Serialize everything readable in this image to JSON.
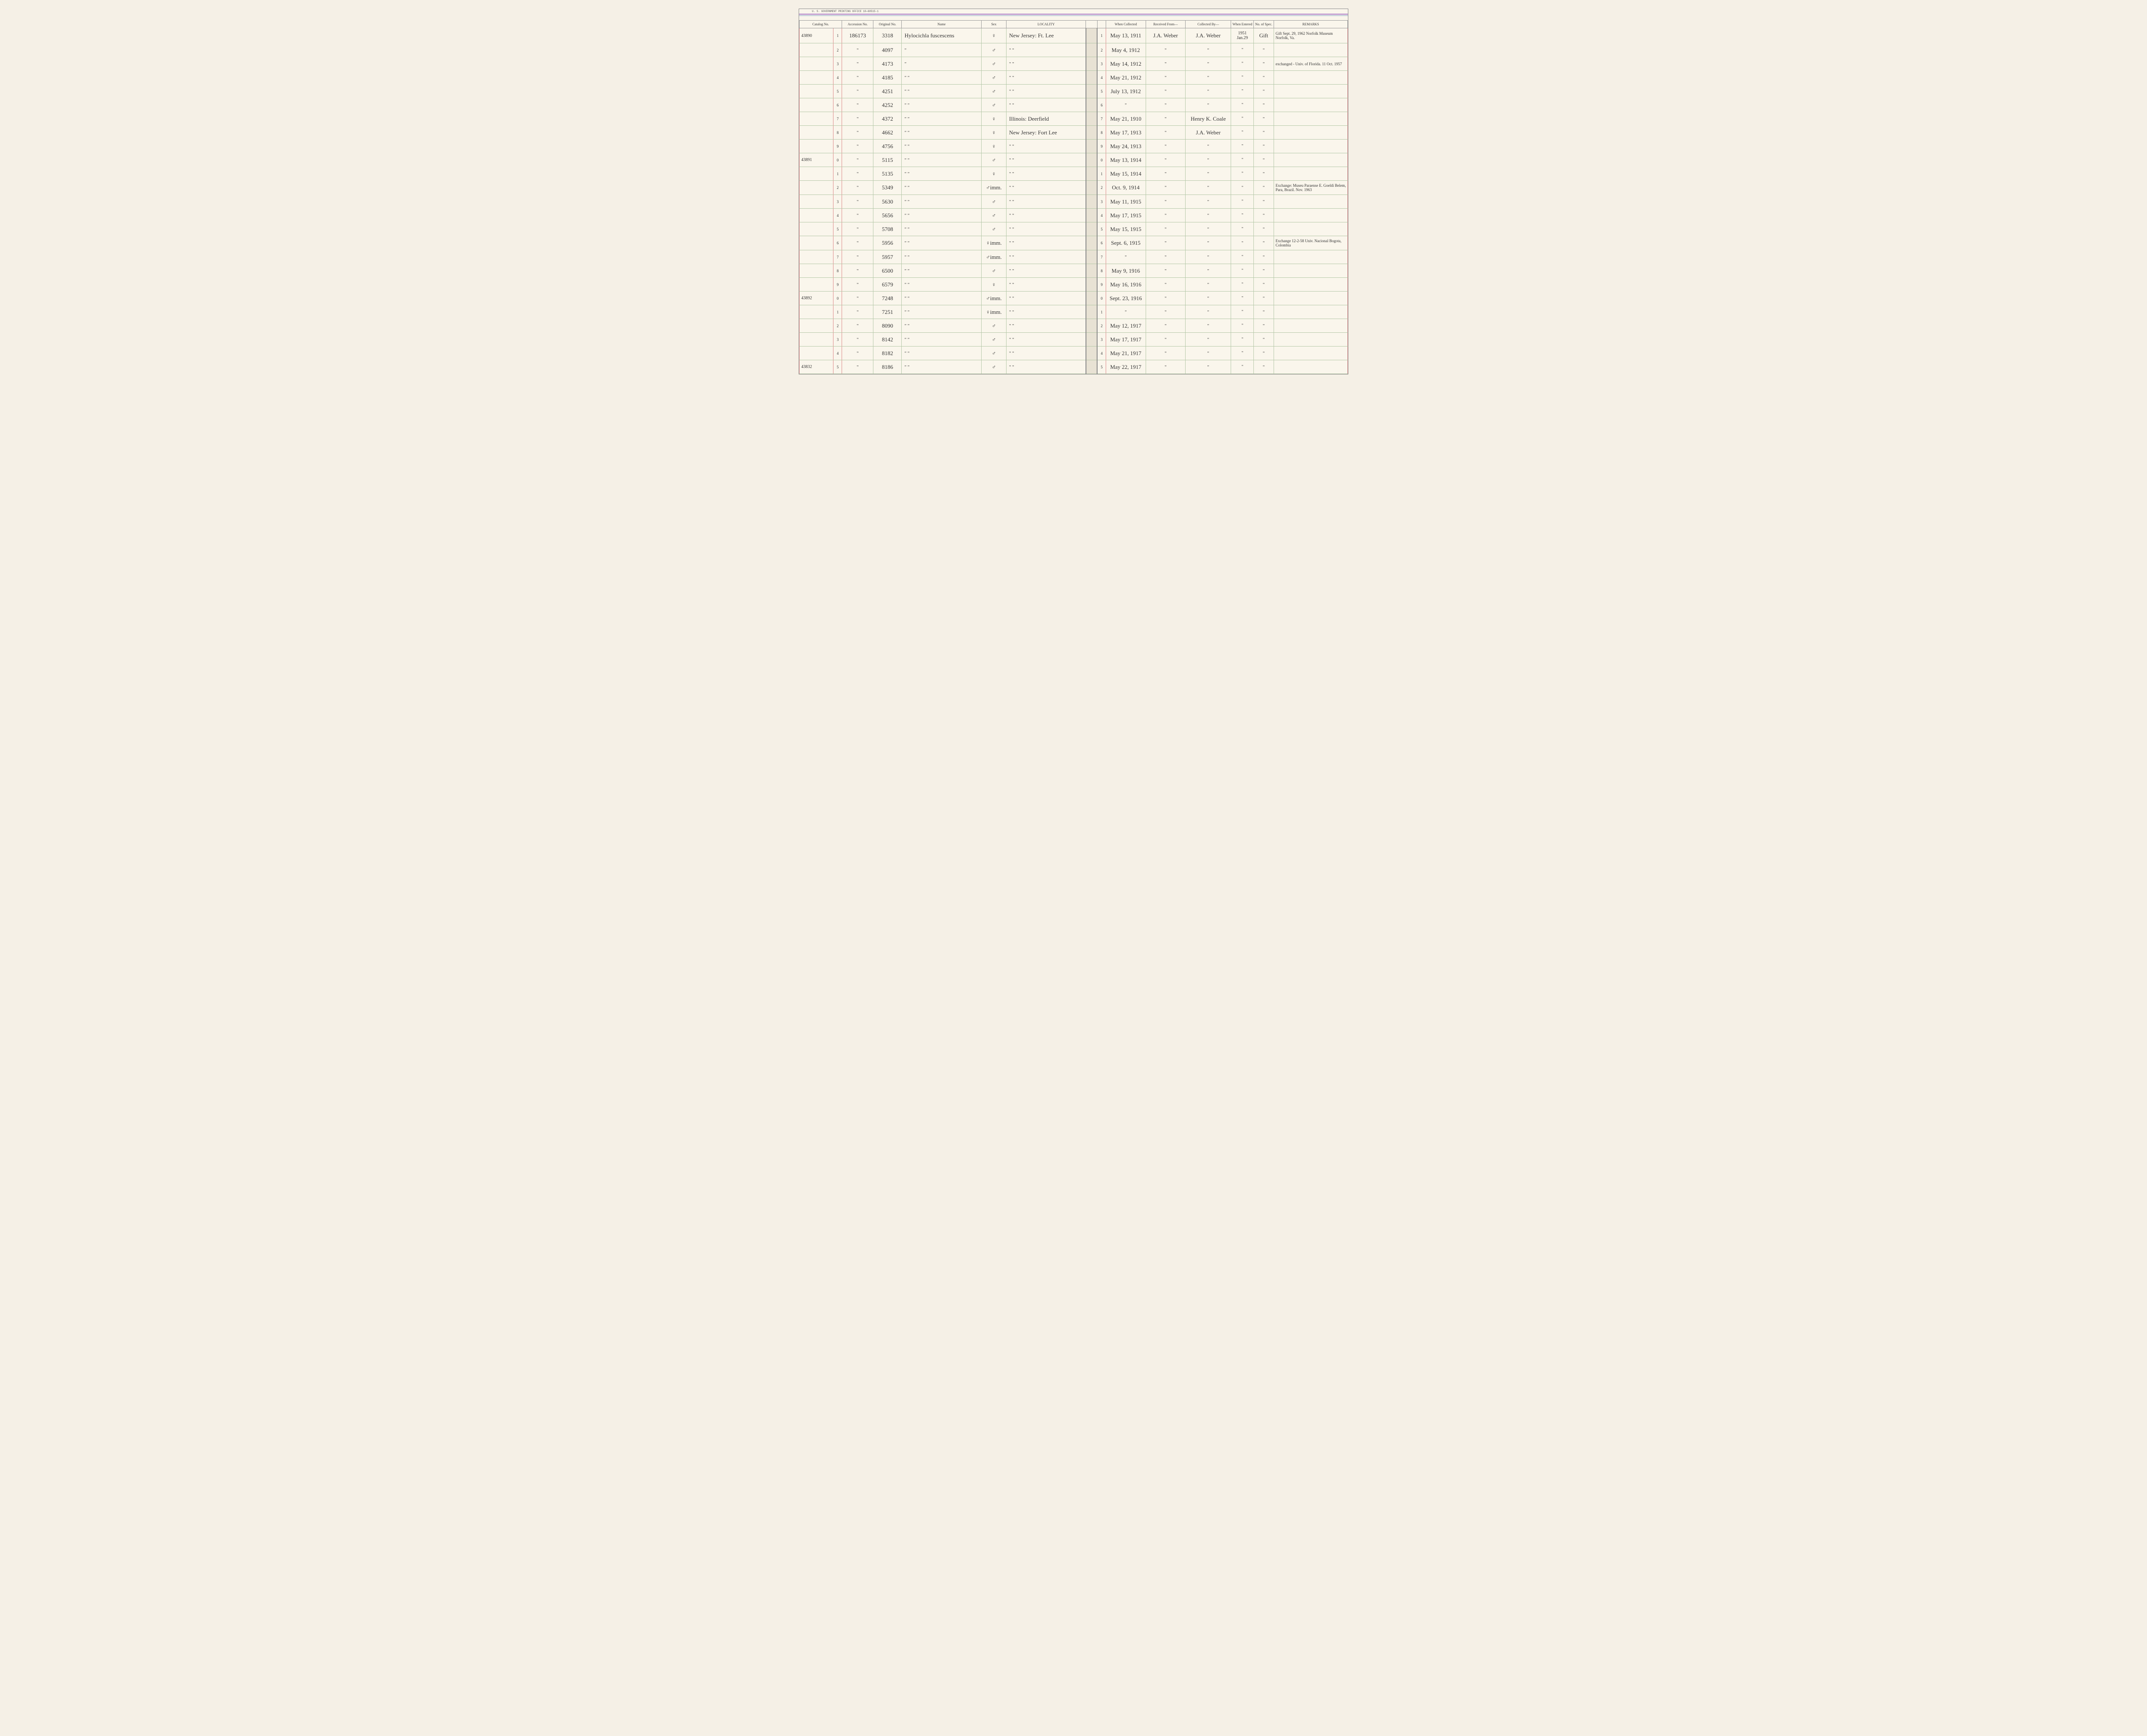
{
  "meta": {
    "printOffice": "U. S. GOVERNMENT PRINTING OFFICE    10—60515-1"
  },
  "columns": {
    "catalog": "Catalog\nNo.",
    "accession": "Accession\nNo.",
    "original": "Original\nNo.",
    "name": "Name",
    "sex": "Sex",
    "locality": "LOCALITY",
    "whenCollected": "When\nCollected",
    "receivedFrom": "Received From—",
    "collectedBy": "Collected By—",
    "whenEntered": "When\nEntered",
    "noOfSpec": "No.\nof\nSpec.",
    "remarks": "REMARKS"
  },
  "rows": [
    {
      "catalog": "43890",
      "idx": "1",
      "accession": "186173",
      "original": "3318",
      "name": "Hylocichla fuscescens",
      "sex": "♀",
      "locality": "New Jersey: Ft. Lee",
      "idx2": "1",
      "whenCollected": "May 13, 1911",
      "receivedFrom": "J.A. Weber",
      "collectedBy": "J.A. Weber",
      "whenEntered": "1951 Jan.29",
      "spec": "Gift",
      "remarks": "Gift Sept. 29, 1962 Norfolk Museum Norfolk, Va."
    },
    {
      "catalog": "",
      "idx": "2",
      "accession": "\"",
      "original": "4097",
      "name": "\"",
      "sex": "♂",
      "locality": "\"     \"",
      "idx2": "2",
      "whenCollected": "May 4, 1912",
      "receivedFrom": "\"",
      "collectedBy": "\"",
      "whenEntered": "\"",
      "spec": "\"",
      "remarks": ""
    },
    {
      "catalog": "",
      "idx": "3",
      "accession": "\"",
      "original": "4173",
      "name": "\"",
      "sex": "♂",
      "locality": "\"     \"",
      "idx2": "3",
      "whenCollected": "May 14, 1912",
      "receivedFrom": "\"",
      "collectedBy": "\"",
      "whenEntered": "\"",
      "spec": "\"",
      "remarks": "exchanged - Univ. of Florida. 11 Oct. 1957"
    },
    {
      "catalog": "",
      "idx": "4",
      "accession": "\"",
      "original": "4185",
      "name": "\"     \"",
      "sex": "♂",
      "locality": "\"     \"",
      "idx2": "4",
      "whenCollected": "May 21, 1912",
      "receivedFrom": "\"",
      "collectedBy": "\"",
      "whenEntered": "\"",
      "spec": "\"",
      "remarks": ""
    },
    {
      "catalog": "",
      "idx": "5",
      "accession": "\"",
      "original": "4251",
      "name": "\"     \"",
      "sex": "♂",
      "locality": "\"     \"",
      "idx2": "5",
      "whenCollected": "July 13, 1912",
      "receivedFrom": "\"",
      "collectedBy": "\"",
      "whenEntered": "\"",
      "spec": "\"",
      "remarks": ""
    },
    {
      "catalog": "",
      "idx": "6",
      "accession": "\"",
      "original": "4252",
      "name": "\"     \"",
      "sex": "♂",
      "locality": "\"     \"",
      "idx2": "6",
      "whenCollected": "\"",
      "receivedFrom": "\"",
      "collectedBy": "\"",
      "whenEntered": "\"",
      "spec": "\"",
      "remarks": ""
    },
    {
      "catalog": "",
      "idx": "7",
      "accession": "\"",
      "original": "4372",
      "name": "\"     \"",
      "sex": "♀",
      "locality": "Illinois: Deerfield",
      "idx2": "7",
      "whenCollected": "May 21, 1910",
      "receivedFrom": "\"",
      "collectedBy": "Henry K. Coale",
      "whenEntered": "\"",
      "spec": "\"",
      "remarks": ""
    },
    {
      "catalog": "",
      "idx": "8",
      "accession": "\"",
      "original": "4662",
      "name": "\"     \"",
      "sex": "♀",
      "locality": "New Jersey: Fort Lee",
      "idx2": "8",
      "whenCollected": "May 17, 1913",
      "receivedFrom": "\"",
      "collectedBy": "J.A. Weber",
      "whenEntered": "\"",
      "spec": "\"",
      "remarks": ""
    },
    {
      "catalog": "",
      "idx": "9",
      "accession": "\"",
      "original": "4756",
      "name": "\"     \"",
      "sex": "♀",
      "locality": "\"     \"",
      "idx2": "9",
      "whenCollected": "May 24, 1913",
      "receivedFrom": "\"",
      "collectedBy": "\"",
      "whenEntered": "\"",
      "spec": "\"",
      "remarks": ""
    },
    {
      "catalog": "43891",
      "idx": "0",
      "accession": "\"",
      "original": "5115",
      "name": "\"     \"",
      "sex": "♂",
      "locality": "\"     \"",
      "idx2": "0",
      "whenCollected": "May 13, 1914",
      "receivedFrom": "\"",
      "collectedBy": "\"",
      "whenEntered": "\"",
      "spec": "\"",
      "remarks": ""
    },
    {
      "catalog": "",
      "idx": "1",
      "accession": "\"",
      "original": "5135",
      "name": "\"     \"",
      "sex": "♀",
      "locality": "\"     \"",
      "idx2": "1",
      "whenCollected": "May 15, 1914",
      "receivedFrom": "\"",
      "collectedBy": "\"",
      "whenEntered": "\"",
      "spec": "\"",
      "remarks": ""
    },
    {
      "catalog": "",
      "idx": "2",
      "accession": "\"",
      "original": "5349",
      "name": "\"     \"",
      "sex": "♂imm.",
      "locality": "\"     \"",
      "idx2": "2",
      "whenCollected": "Oct. 9, 1914",
      "receivedFrom": "\"",
      "collectedBy": "\"",
      "whenEntered": "\"",
      "spec": "\"",
      "remarks": "Exchange: Museu Paraense E. Goeldi Belem, Para, Brazil. Nov. 1963"
    },
    {
      "catalog": "",
      "idx": "3",
      "accession": "\"",
      "original": "5630",
      "name": "\"     \"",
      "sex": "♂",
      "locality": "\"     \"",
      "idx2": "3",
      "whenCollected": "May 11, 1915",
      "receivedFrom": "\"",
      "collectedBy": "\"",
      "whenEntered": "\"",
      "spec": "\"",
      "remarks": ""
    },
    {
      "catalog": "",
      "idx": "4",
      "accession": "\"",
      "original": "5656",
      "name": "\"     \"",
      "sex": "♂",
      "locality": "\"     \"",
      "idx2": "4",
      "whenCollected": "May 17, 1915",
      "receivedFrom": "\"",
      "collectedBy": "\"",
      "whenEntered": "\"",
      "spec": "\"",
      "remarks": ""
    },
    {
      "catalog": "",
      "idx": "5",
      "accession": "\"",
      "original": "5708",
      "name": "\"     \"",
      "sex": "♂",
      "locality": "\"     \"",
      "idx2": "5",
      "whenCollected": "May 15, 1915",
      "receivedFrom": "\"",
      "collectedBy": "\"",
      "whenEntered": "\"",
      "spec": "\"",
      "remarks": ""
    },
    {
      "catalog": "",
      "idx": "6",
      "accession": "\"",
      "original": "5956",
      "name": "\"     \"",
      "sex": "♀imm.",
      "locality": "\"     \"",
      "idx2": "6",
      "whenCollected": "Sept. 6, 1915",
      "receivedFrom": "\"",
      "collectedBy": "\"",
      "whenEntered": "\"",
      "spec": "\"",
      "remarks": "Exchange 12-2-58 Univ. Nacional Bogota, Colombia"
    },
    {
      "catalog": "",
      "idx": "7",
      "accession": "\"",
      "original": "5957",
      "name": "\"     \"",
      "sex": "♂imm.",
      "locality": "\"     \"",
      "idx2": "7",
      "whenCollected": "\"",
      "receivedFrom": "\"",
      "collectedBy": "\"",
      "whenEntered": "\"",
      "spec": "\"",
      "remarks": ""
    },
    {
      "catalog": "",
      "idx": "8",
      "accession": "\"",
      "original": "6500",
      "name": "\"     \"",
      "sex": "♂",
      "locality": "\"     \"",
      "idx2": "8",
      "whenCollected": "May 9, 1916",
      "receivedFrom": "\"",
      "collectedBy": "\"",
      "whenEntered": "\"",
      "spec": "\"",
      "remarks": ""
    },
    {
      "catalog": "",
      "idx": "9",
      "accession": "\"",
      "original": "6579",
      "name": "\"     \"",
      "sex": "♀",
      "locality": "\"     \"",
      "idx2": "9",
      "whenCollected": "May 16, 1916",
      "receivedFrom": "\"",
      "collectedBy": "\"",
      "whenEntered": "\"",
      "spec": "\"",
      "remarks": ""
    },
    {
      "catalog": "43892",
      "idx": "0",
      "accession": "\"",
      "original": "7248",
      "name": "\"     \"",
      "sex": "♂imm.",
      "locality": "\"     \"",
      "idx2": "0",
      "whenCollected": "Sept. 23, 1916",
      "receivedFrom": "\"",
      "collectedBy": "\"",
      "whenEntered": "\"",
      "spec": "\"",
      "remarks": ""
    },
    {
      "catalog": "",
      "idx": "1",
      "accession": "\"",
      "original": "7251",
      "name": "\"     \"",
      "sex": "♀imm.",
      "locality": "\"     \"",
      "idx2": "1",
      "whenCollected": "\"",
      "receivedFrom": "\"",
      "collectedBy": "\"",
      "whenEntered": "\"",
      "spec": "\"",
      "remarks": ""
    },
    {
      "catalog": "",
      "idx": "2",
      "accession": "\"",
      "original": "8090",
      "name": "\"     \"",
      "sex": "♂",
      "locality": "\"     \"",
      "idx2": "2",
      "whenCollected": "May 12, 1917",
      "receivedFrom": "\"",
      "collectedBy": "\"",
      "whenEntered": "\"",
      "spec": "\"",
      "remarks": ""
    },
    {
      "catalog": "",
      "idx": "3",
      "accession": "\"",
      "original": "8142",
      "name": "\"     \"",
      "sex": "♂",
      "locality": "\"     \"",
      "idx2": "3",
      "whenCollected": "May 17, 1917",
      "receivedFrom": "\"",
      "collectedBy": "\"",
      "whenEntered": "\"",
      "spec": "\"",
      "remarks": ""
    },
    {
      "catalog": "",
      "idx": "4",
      "accession": "\"",
      "original": "8182",
      "name": "\"     \"",
      "sex": "♂",
      "locality": "\"     \"",
      "idx2": "4",
      "whenCollected": "May 21, 1917",
      "receivedFrom": "\"",
      "collectedBy": "\"",
      "whenEntered": "\"",
      "spec": "\"",
      "remarks": ""
    },
    {
      "catalog": "43832",
      "idx": "5",
      "accession": "\"",
      "original": "8186",
      "name": "\"     \"",
      "sex": "♂",
      "locality": "\"     \"",
      "idx2": "5",
      "whenCollected": "May 22, 1917",
      "receivedFrom": "\"",
      "collectedBy": "\"",
      "whenEntered": "\"",
      "spec": "\"",
      "remarks": ""
    }
  ]
}
